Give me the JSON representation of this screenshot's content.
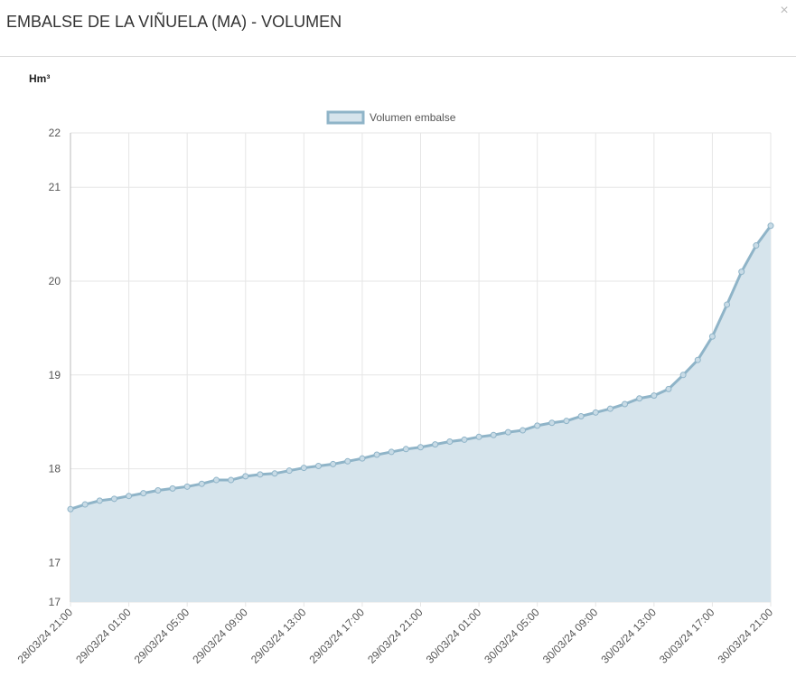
{
  "modal": {
    "title": "EMBALSE DE LA VIÑUELA (MA) - VOLUMEN",
    "close": "×"
  },
  "chart_data": {
    "type": "line",
    "y_label": "Hm³",
    "categories": [
      "28/03/24 21:00",
      null,
      null,
      null,
      "29/03/24 01:00",
      null,
      null,
      null,
      "29/03/24 05:00",
      null,
      null,
      null,
      "29/03/24 09:00",
      null,
      null,
      null,
      "29/03/24 13:00",
      null,
      null,
      null,
      "29/03/24 17:00",
      null,
      null,
      null,
      "29/03/24 21:00",
      null,
      null,
      null,
      "30/03/24 01:00",
      null,
      null,
      null,
      "30/03/24 05:00",
      null,
      null,
      null,
      "30/03/24 09:00",
      null,
      null,
      null,
      "30/03/24 13:00",
      null,
      null,
      null,
      "30/03/24 17:00",
      null,
      null,
      null,
      "30/03/24 21:00"
    ],
    "series": [
      {
        "name": "Volumen embalse",
        "color": "#8fb4c8",
        "fill": "#d6e4ec",
        "values": [
          17.57,
          17.62,
          17.66,
          17.68,
          17.71,
          17.74,
          17.77,
          17.79,
          17.81,
          17.84,
          17.88,
          17.88,
          17.92,
          17.94,
          17.95,
          17.98,
          18.01,
          18.03,
          18.05,
          18.08,
          18.11,
          18.15,
          18.18,
          18.21,
          18.23,
          18.26,
          18.29,
          18.31,
          18.34,
          18.36,
          18.39,
          18.41,
          18.46,
          18.49,
          18.51,
          18.56,
          18.6,
          18.64,
          18.69,
          18.75,
          18.78,
          18.85,
          19.0,
          19.16,
          19.41,
          19.75,
          20.1,
          20.38,
          20.59
        ]
      }
    ],
    "ylim": [
      16.58,
      21.58
    ],
    "yticks": [
      {
        "value": 16.58,
        "label": "17"
      },
      17,
      18,
      19,
      20,
      21,
      {
        "value": 21.58,
        "label": "22"
      }
    ],
    "grid": true
  }
}
